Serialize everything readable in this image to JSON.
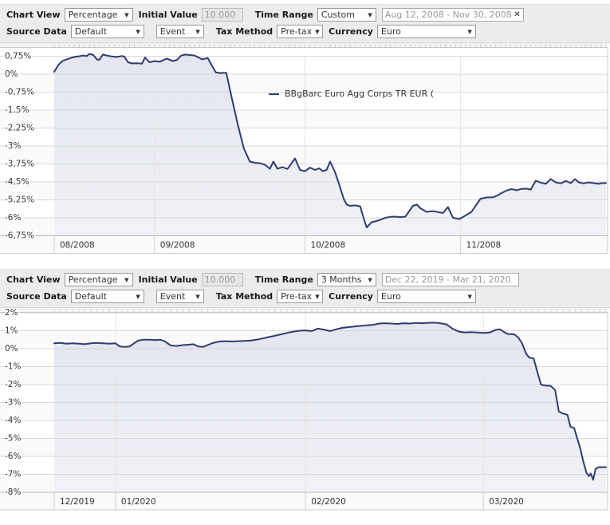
{
  "labels": {
    "chart_view": "Chart View",
    "initial_value": "Initial Value",
    "time_range": "Time Range",
    "source_data": "Source Data",
    "tax_method": "Tax Method",
    "currency": "Currency"
  },
  "panels": [
    {
      "chart_view": "Percentage",
      "initial_value": "10.000",
      "time_range": "Custom",
      "date_range": "Aug 12, 2008 - Nov 30, 2008",
      "clear_icon": "✕",
      "source_data": "Default",
      "event": "Event",
      "tax_method": "Pre-tax",
      "currency": "Euro",
      "legend": "BBgBarc Euro Agg Corps TR EUR ("
    },
    {
      "chart_view": "Percentage",
      "initial_value": "10.000",
      "time_range": "3 Months",
      "date_range": "Dec 22, 2019 - Mar 21, 2020",
      "source_data": "Default",
      "event": "Event",
      "tax_method": "Pre-tax",
      "currency": "Euro"
    }
  ],
  "colors": {
    "line": "#323b6e",
    "fill_top": "#e3e5ef",
    "fill_bottom": "#f1f2f7",
    "grid": "#d9d9d9",
    "axis_text": "#333333",
    "band_bg": "#fafafa"
  },
  "chart_data": [
    {
      "type": "area",
      "title": "",
      "x_start": "Aug 12, 2008",
      "x_end": "Nov 30, 2008",
      "x_days": 110,
      "x_ticks": [
        {
          "day": 0,
          "label": "08/2008"
        },
        {
          "day": 20,
          "label": "09/2008"
        },
        {
          "day": 50,
          "label": "10/2008"
        },
        {
          "day": 81,
          "label": "11/2008"
        }
      ],
      "y_ticks": [
        "0,75%",
        "0%",
        "-0,75%",
        "-1,5%",
        "-2,25%",
        "-3%",
        "-3,75%",
        "-4,5%",
        "-5,25%",
        "-6%",
        "-6,75%"
      ],
      "y_max": 0.75,
      "y_min": -6.75,
      "y_step": 0.75,
      "grid": true,
      "legend_position": "top-center",
      "series": [
        {
          "name": "BBgBarc Euro Agg Corps TR EUR (",
          "points": [
            [
              0,
              0.1
            ],
            [
              0.8,
              0.38
            ],
            [
              1.6,
              0.55
            ],
            [
              2.5,
              0.62
            ],
            [
              3.3,
              0.68
            ],
            [
              4.2,
              0.73
            ],
            [
              5,
              0.75
            ],
            [
              5.8,
              0.78
            ],
            [
              6.5,
              0.76
            ],
            [
              7,
              0.85
            ],
            [
              7.8,
              0.8
            ],
            [
              8.5,
              0.62
            ],
            [
              9,
              0.6
            ],
            [
              9.7,
              0.82
            ],
            [
              10.5,
              0.78
            ],
            [
              11.5,
              0.74
            ],
            [
              12.5,
              0.72
            ],
            [
              13.5,
              0.76
            ],
            [
              14,
              0.73
            ],
            [
              14.7,
              0.5
            ],
            [
              15.5,
              0.45
            ],
            [
              16.5,
              0.46
            ],
            [
              17.5,
              0.44
            ],
            [
              18.1,
              0.7
            ],
            [
              19,
              0.5
            ],
            [
              20,
              0.55
            ],
            [
              21,
              0.52
            ],
            [
              22.4,
              0.65
            ],
            [
              23.7,
              0.55
            ],
            [
              24.5,
              0.6
            ],
            [
              25.3,
              0.78
            ],
            [
              26.2,
              0.82
            ],
            [
              27,
              0.8
            ],
            [
              28,
              0.78
            ],
            [
              29.5,
              0.62
            ],
            [
              30.6,
              0.68
            ],
            [
              31.6,
              0.3
            ],
            [
              32.2,
              0.08
            ],
            [
              33,
              0.05
            ],
            [
              34.3,
              0.06
            ],
            [
              35.4,
              -1.0
            ],
            [
              36.6,
              -2.1
            ],
            [
              37.8,
              -3.1
            ],
            [
              39,
              -3.65
            ],
            [
              40,
              -3.7
            ],
            [
              41,
              -3.72
            ],
            [
              42,
              -3.78
            ],
            [
              43,
              -3.95
            ],
            [
              43.7,
              -3.65
            ],
            [
              44.5,
              -3.95
            ],
            [
              45.5,
              -3.88
            ],
            [
              46.5,
              -3.96
            ],
            [
              48,
              -3.52
            ],
            [
              49,
              -4.0
            ],
            [
              50,
              -4.05
            ],
            [
              51,
              -3.9
            ],
            [
              52,
              -4.0
            ],
            [
              52.8,
              -3.93
            ],
            [
              53.5,
              -4.05
            ],
            [
              54.3,
              -4.0
            ],
            [
              55,
              -3.65
            ],
            [
              56,
              -4.1
            ],
            [
              56.8,
              -4.6
            ],
            [
              57.7,
              -5.2
            ],
            [
              58.3,
              -5.45
            ],
            [
              59,
              -5.5
            ],
            [
              60,
              -5.48
            ],
            [
              61,
              -5.52
            ],
            [
              61.8,
              -6.1
            ],
            [
              62.3,
              -6.4
            ],
            [
              63.3,
              -6.18
            ],
            [
              64,
              -6.15
            ],
            [
              65,
              -6.08
            ],
            [
              66,
              -6.0
            ],
            [
              67,
              -5.96
            ],
            [
              68,
              -5.95
            ],
            [
              69,
              -5.97
            ],
            [
              70,
              -5.95
            ],
            [
              71.5,
              -5.5
            ],
            [
              72.3,
              -5.45
            ],
            [
              73,
              -5.6
            ],
            [
              74.2,
              -5.75
            ],
            [
              75.5,
              -5.72
            ],
            [
              76.5,
              -5.76
            ],
            [
              77.5,
              -5.8
            ],
            [
              78.5,
              -5.55
            ],
            [
              79.5,
              -6.0
            ],
            [
              80.8,
              -6.05
            ],
            [
              82,
              -5.9
            ],
            [
              83.2,
              -5.75
            ],
            [
              84,
              -5.5
            ],
            [
              85,
              -5.2
            ],
            [
              86.2,
              -5.15
            ],
            [
              87.5,
              -5.14
            ],
            [
              88.5,
              -5.05
            ],
            [
              89.3,
              -4.95
            ],
            [
              90.3,
              -4.85
            ],
            [
              91.2,
              -4.8
            ],
            [
              92.2,
              -4.85
            ],
            [
              93,
              -4.8
            ],
            [
              94,
              -4.78
            ],
            [
              95,
              -4.82
            ],
            [
              96,
              -4.45
            ],
            [
              96.8,
              -4.52
            ],
            [
              98,
              -4.58
            ],
            [
              99,
              -4.38
            ],
            [
              100,
              -4.52
            ],
            [
              101,
              -4.56
            ],
            [
              102,
              -4.46
            ],
            [
              103,
              -4.55
            ],
            [
              103.8,
              -4.38
            ],
            [
              104.6,
              -4.52
            ],
            [
              105.5,
              -4.56
            ],
            [
              106.5,
              -4.52
            ],
            [
              107.5,
              -4.55
            ],
            [
              108.5,
              -4.58
            ],
            [
              109.2,
              -4.55
            ],
            [
              110,
              -4.55
            ]
          ]
        }
      ]
    },
    {
      "type": "area",
      "title": "",
      "x_start": "Dec 22, 2019",
      "x_end": "Mar 21, 2020",
      "x_days": 90,
      "x_ticks": [
        {
          "day": 0,
          "label": "12/2019"
        },
        {
          "day": 10,
          "label": "01/2020"
        },
        {
          "day": 41,
          "label": "02/2020"
        },
        {
          "day": 70,
          "label": "03/2020"
        }
      ],
      "y_ticks": [
        "2%",
        "1%",
        "0%",
        "-1%",
        "-2%",
        "-3%",
        "-4%",
        "-5%",
        "-6%",
        "-7%",
        "-8%"
      ],
      "y_max": 2,
      "y_min": -8,
      "y_step": 1,
      "grid": true,
      "legend_position": "none",
      "series": [
        {
          "name": "BBgBarc Euro Agg Corps TR EUR (",
          "points": [
            [
              0,
              0.3
            ],
            [
              1,
              0.32
            ],
            [
              2,
              0.28
            ],
            [
              3,
              0.3
            ],
            [
              4,
              0.28
            ],
            [
              5,
              0.25
            ],
            [
              6,
              0.3
            ],
            [
              7,
              0.32
            ],
            [
              8,
              0.3
            ],
            [
              9,
              0.28
            ],
            [
              10,
              0.3
            ],
            [
              10.7,
              0.12
            ],
            [
              11.5,
              0.1
            ],
            [
              12.3,
              0.12
            ],
            [
              13,
              0.3
            ],
            [
              13.7,
              0.45
            ],
            [
              14.5,
              0.5
            ],
            [
              15.5,
              0.5
            ],
            [
              16.5,
              0.48
            ],
            [
              17.3,
              0.5
            ],
            [
              18,
              0.42
            ],
            [
              19,
              0.18
            ],
            [
              20,
              0.15
            ],
            [
              21,
              0.2
            ],
            [
              22,
              0.22
            ],
            [
              22.7,
              0.25
            ],
            [
              23.5,
              0.12
            ],
            [
              24.3,
              0.1
            ],
            [
              25,
              0.2
            ],
            [
              26,
              0.33
            ],
            [
              27,
              0.4
            ],
            [
              28,
              0.42
            ],
            [
              29,
              0.4
            ],
            [
              30,
              0.42
            ],
            [
              31,
              0.43
            ],
            [
              32,
              0.45
            ],
            [
              33,
              0.5
            ],
            [
              34,
              0.57
            ],
            [
              35,
              0.65
            ],
            [
              36,
              0.72
            ],
            [
              37,
              0.8
            ],
            [
              38,
              0.88
            ],
            [
              39,
              0.95
            ],
            [
              40,
              1.0
            ],
            [
              41,
              1.02
            ],
            [
              42,
              0.98
            ],
            [
              43,
              1.12
            ],
            [
              44,
              1.06
            ],
            [
              45,
              0.98
            ],
            [
              46,
              1.08
            ],
            [
              47,
              1.16
            ],
            [
              48,
              1.2
            ],
            [
              49,
              1.24
            ],
            [
              50,
              1.27
            ],
            [
              51,
              1.3
            ],
            [
              52,
              1.33
            ],
            [
              53,
              1.4
            ],
            [
              54,
              1.42
            ],
            [
              55,
              1.4
            ],
            [
              56,
              1.38
            ],
            [
              57,
              1.42
            ],
            [
              58,
              1.4
            ],
            [
              59,
              1.43
            ],
            [
              60,
              1.42
            ],
            [
              61,
              1.44
            ],
            [
              62,
              1.45
            ],
            [
              63,
              1.42
            ],
            [
              64,
              1.35
            ],
            [
              65,
              1.1
            ],
            [
              66,
              0.95
            ],
            [
              67,
              0.9
            ],
            [
              68,
              0.92
            ],
            [
              69,
              0.9
            ],
            [
              70,
              0.88
            ],
            [
              71,
              0.9
            ],
            [
              72,
              1.05
            ],
            [
              72.7,
              1.08
            ],
            [
              73.4,
              0.92
            ],
            [
              74,
              0.82
            ],
            [
              75,
              0.8
            ],
            [
              75.7,
              0.62
            ],
            [
              76.3,
              0.3
            ],
            [
              77,
              -0.3
            ],
            [
              77.5,
              -0.5
            ],
            [
              78.2,
              -0.55
            ],
            [
              78.8,
              -1.3
            ],
            [
              79.4,
              -2.0
            ],
            [
              80,
              -2.05
            ],
            [
              81,
              -2.08
            ],
            [
              81.7,
              -2.3
            ],
            [
              82.3,
              -3.5
            ],
            [
              83,
              -3.62
            ],
            [
              83.7,
              -3.68
            ],
            [
              84.2,
              -4.35
            ],
            [
              84.8,
              -4.42
            ],
            [
              85.3,
              -5.0
            ],
            [
              85.8,
              -5.55
            ],
            [
              86.3,
              -6.3
            ],
            [
              86.8,
              -6.9
            ],
            [
              87.2,
              -7.1
            ],
            [
              87.5,
              -6.95
            ],
            [
              87.9,
              -7.3
            ],
            [
              88.3,
              -6.7
            ],
            [
              88.8,
              -6.6
            ],
            [
              90,
              -6.6
            ]
          ]
        }
      ]
    }
  ]
}
